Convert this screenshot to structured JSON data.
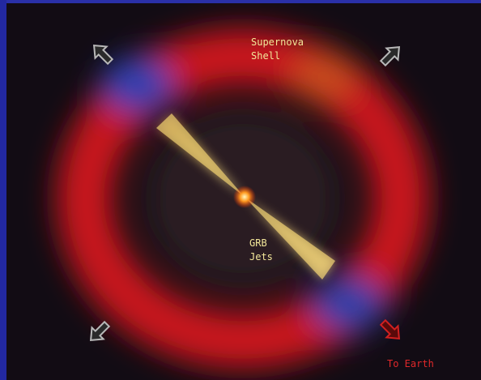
{
  "labels": {
    "supernova_shell": [
      "Supernova",
      "Shell"
    ],
    "grb_jets": [
      "GRB",
      "Jets"
    ],
    "to_earth": "To Earth"
  }
}
